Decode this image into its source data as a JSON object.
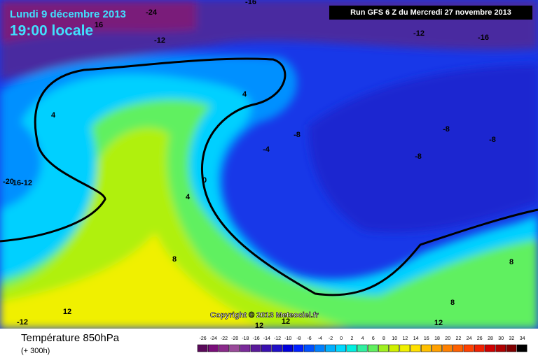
{
  "header": {
    "date": "Lundi 9 décembre 2013",
    "time": "19:00 locale",
    "run": "Run GFS 6 Z du Mercredi 27 novembre 2013"
  },
  "copyright": "Copyright © 2013 Meteociel.fr",
  "contour_labels": [
    "-24",
    "-16",
    "16",
    "-12",
    "-12",
    "-16",
    "4",
    "4",
    "-8",
    "-8",
    "-8",
    "-8",
    "-4",
    "0",
    "4",
    "-20",
    "16",
    "-12",
    "8",
    "8",
    "8",
    "12",
    "12",
    "-12",
    "12",
    "12"
  ],
  "legend": {
    "title": "Température 850hPa",
    "subtitle": "(+ 300h)",
    "ticks": [
      -26,
      -24,
      -22,
      -20,
      -18,
      -16,
      -14,
      -12,
      -10,
      -8,
      -6,
      -4,
      -2,
      0,
      2,
      4,
      6,
      8,
      10,
      12,
      14,
      16,
      18,
      20,
      22,
      24,
      26,
      28,
      30,
      32,
      34
    ],
    "colors": [
      "#5a0a5a",
      "#7a0f7a",
      "#8a2a8a",
      "#9a4a9a",
      "#7a2a9a",
      "#5a1a9a",
      "#3a10b0",
      "#2010c8",
      "#0000dc",
      "#0020ff",
      "#0050ff",
      "#0080ff",
      "#00b0ff",
      "#00d8ff",
      "#00f0e0",
      "#30f0a0",
      "#60f060",
      "#a0f020",
      "#d0f000",
      "#f0f000",
      "#ffe000",
      "#ffc000",
      "#ffa000",
      "#ff8000",
      "#ff6000",
      "#ff4000",
      "#f02000",
      "#d00000",
      "#b00000",
      "#800000",
      "#000000"
    ]
  }
}
